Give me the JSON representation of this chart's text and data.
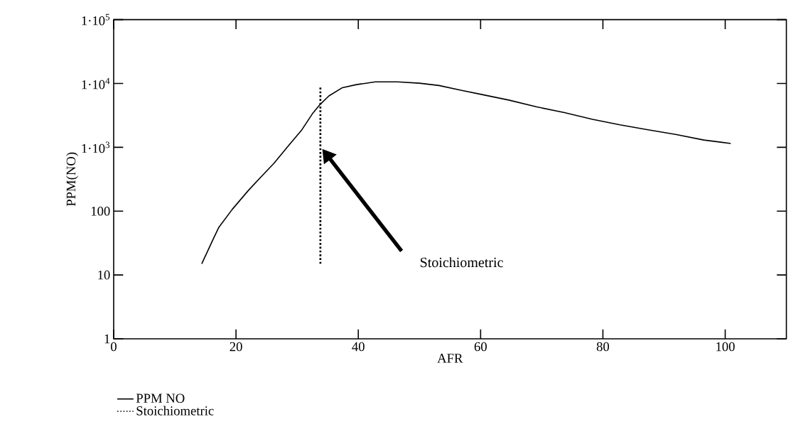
{
  "chart_data": {
    "type": "line",
    "xlabel": "AFR",
    "ylabel": "PPM(NO)",
    "log": "y",
    "xlim": [
      0,
      110
    ],
    "xticks": [
      0,
      20,
      40,
      60,
      80,
      100
    ],
    "ylim": [
      1,
      100000
    ],
    "yticks": [
      1,
      10,
      100,
      {
        "value": 1000,
        "label": "1·10$^{3}$"
      },
      {
        "value": 10000,
        "label": "1·10$^{4}$"
      },
      {
        "value": 100000,
        "label": "1·10$^{5}$"
      }
    ],
    "grid": false,
    "legend": "bottom left",
    "annotations": [
      "Stoichiometric"
    ],
    "series": [
      {
        "name": "PPM NO",
        "color": "#000000",
        "line_style": "solid",
        "x": [
          14.4,
          16.3,
          17.2,
          19.4,
          22.1,
          24.4,
          26.2,
          28.4,
          30.7,
          32.5,
          33.8,
          35.2,
          37.4,
          39.7,
          42.8,
          46.4,
          50.0,
          53.2,
          56.9,
          60.1,
          64.6,
          69.2,
          73.7,
          78.3,
          82.8,
          87.4,
          91.9,
          96.5,
          100.9
        ],
        "values": [
          15,
          37,
          56,
          107,
          215,
          370,
          560,
          1010,
          1840,
          3360,
          4750,
          6400,
          8600,
          9600,
          10600,
          10600,
          10100,
          9300,
          7800,
          6750,
          5500,
          4300,
          3500,
          2750,
          2250,
          1880,
          1590,
          1300,
          1150
        ]
      },
      {
        "name": "Stoichiometric",
        "color": "#000000",
        "line_style": "dotted",
        "x": [
          33.8,
          33.8
        ],
        "values": [
          15,
          9000
        ]
      }
    ]
  }
}
